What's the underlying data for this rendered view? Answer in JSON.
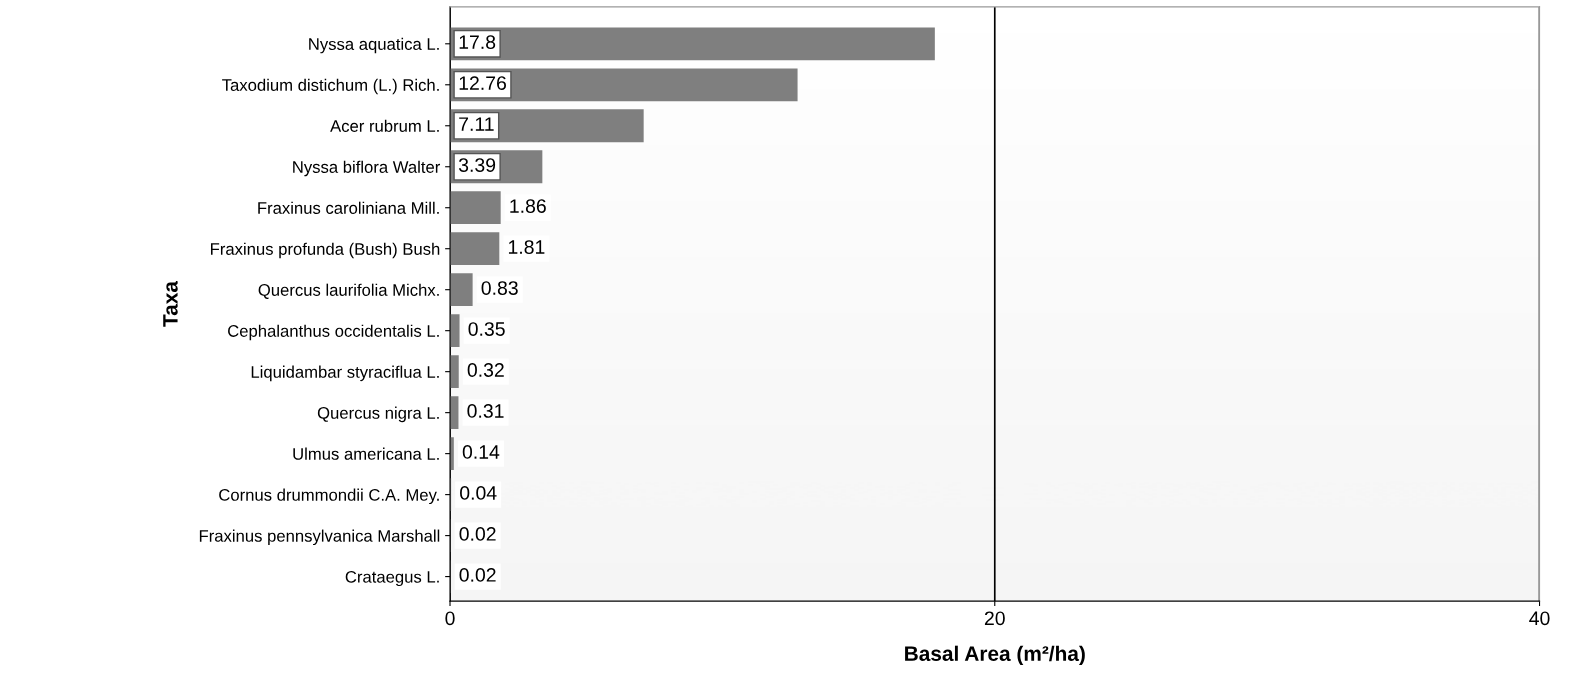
{
  "chart_data": {
    "type": "bar",
    "orientation": "horizontal",
    "xlabel": "Basal Area (m²/ha)",
    "ylabel": "Taxa",
    "categories": [
      "Nyssa aquatica L.",
      "Taxodium distichum (L.) Rich.",
      "Acer rubrum L.",
      "Nyssa biflora Walter",
      "Fraxinus caroliniana Mill.",
      "Fraxinus profunda (Bush) Bush",
      "Quercus laurifolia Michx.",
      "Cephalanthus occidentalis L.",
      "Liquidambar styraciflua L.",
      "Quercus nigra L.",
      "Ulmus americana L.",
      "Cornus drummondii C.A. Mey.",
      "Fraxinus pennsylvanica Marshall",
      "Crataegus L."
    ],
    "values": [
      17.8,
      12.76,
      7.11,
      3.39,
      1.86,
      1.81,
      0.83,
      0.35,
      0.32,
      0.31,
      0.14,
      0.04,
      0.02,
      0.02
    ],
    "color": "#7f7f7f",
    "xlim": [
      0,
      40
    ],
    "xticks": [
      0,
      20,
      40
    ],
    "grid": "x",
    "data_labels": true,
    "legend": false
  }
}
